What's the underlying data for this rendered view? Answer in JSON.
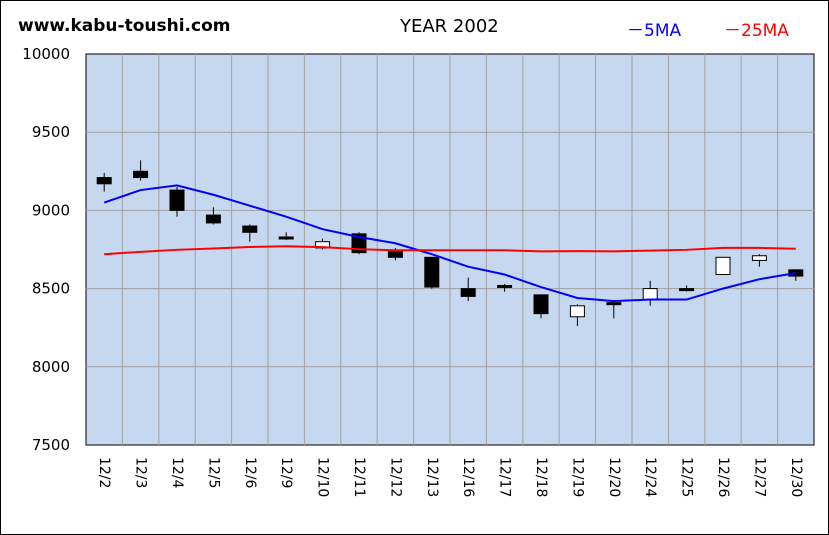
{
  "header": {
    "site": "www.kabu-toushi.com",
    "year_title": "YEAR 2002",
    "legend_5ma": "－5MA",
    "legend_25ma": "－25MA"
  },
  "colors": {
    "plot_background": "#c6d8f0",
    "grid": "#a0a0a0",
    "ma5": "#0000ff",
    "ma25": "#ff0000",
    "candle_down": "#000000",
    "candle_up": "#ffffff"
  },
  "chart_data": {
    "type": "candlestick",
    "title": "YEAR 2002",
    "ylim": [
      7500,
      10000
    ],
    "yticks": [
      10000,
      9500,
      9000,
      8500,
      8000,
      7500
    ],
    "grid": true,
    "legend_position": "top-right",
    "categories": [
      "12/2",
      "12/3",
      "12/4",
      "12/5",
      "12/6",
      "12/9",
      "12/10",
      "12/11",
      "12/12",
      "12/13",
      "12/16",
      "12/17",
      "12/18",
      "12/19",
      "12/20",
      "12/24",
      "12/25",
      "12/26",
      "12/27",
      "12/30"
    ],
    "ohlc": [
      {
        "open": 9210,
        "high": 9240,
        "low": 9120,
        "close": 9170
      },
      {
        "open": 9250,
        "high": 9320,
        "low": 9190,
        "close": 9210
      },
      {
        "open": 9130,
        "high": 9150,
        "low": 8960,
        "close": 9000
      },
      {
        "open": 8970,
        "high": 9020,
        "low": 8910,
        "close": 8920
      },
      {
        "open": 8900,
        "high": 8910,
        "low": 8800,
        "close": 8860
      },
      {
        "open": 8830,
        "high": 8860,
        "low": 8810,
        "close": 8830
      },
      {
        "open": 8760,
        "high": 8820,
        "low": 8750,
        "close": 8800
      },
      {
        "open": 8850,
        "high": 8860,
        "low": 8720,
        "close": 8730
      },
      {
        "open": 8740,
        "high": 8760,
        "low": 8680,
        "close": 8700
      },
      {
        "open": 8700,
        "high": 8700,
        "low": 8500,
        "close": 8510
      },
      {
        "open": 8500,
        "high": 8570,
        "low": 8420,
        "close": 8450
      },
      {
        "open": 8520,
        "high": 8530,
        "low": 8480,
        "close": 8510
      },
      {
        "open": 8460,
        "high": 8460,
        "low": 8310,
        "close": 8340
      },
      {
        "open": 8320,
        "high": 8400,
        "low": 8260,
        "close": 8390
      },
      {
        "open": 8410,
        "high": 8420,
        "low": 8310,
        "close": 8400
      },
      {
        "open": 8430,
        "high": 8550,
        "low": 8390,
        "close": 8500
      },
      {
        "open": 8500,
        "high": 8520,
        "low": 8480,
        "close": 8490
      },
      {
        "open": 8590,
        "high": 8700,
        "low": 8590,
        "close": 8700
      },
      {
        "open": 8680,
        "high": 8720,
        "low": 8640,
        "close": 8710
      },
      {
        "open": 8620,
        "high": 8620,
        "low": 8550,
        "close": 8580
      }
    ],
    "series": [
      {
        "name": "5MA",
        "values": [
          9050,
          9130,
          9160,
          9100,
          9030,
          8960,
          8880,
          8830,
          8790,
          8720,
          8640,
          8590,
          8510,
          8440,
          8420,
          8430,
          8430,
          8500,
          8560,
          8600
        ]
      },
      {
        "name": "25MA",
        "values": [
          8720,
          8735,
          8748,
          8756,
          8766,
          8771,
          8765,
          8752,
          8745,
          8745,
          8745,
          8745,
          8738,
          8740,
          8738,
          8743,
          8748,
          8760,
          8760,
          8755
        ]
      }
    ]
  }
}
